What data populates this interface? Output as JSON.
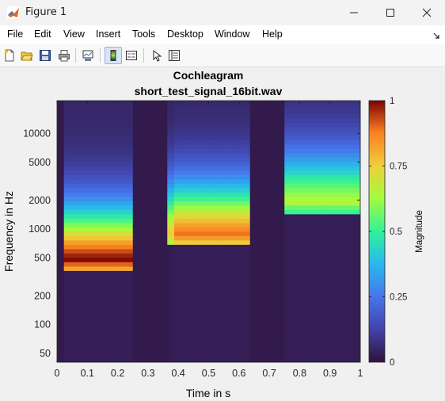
{
  "window": {
    "title": "Figure 1",
    "icon": "matlab-icon"
  },
  "menu": [
    "File",
    "Edit",
    "View",
    "Insert",
    "Tools",
    "Desktop",
    "Window",
    "Help"
  ],
  "toolbar": {
    "icons": [
      "new-figure-icon",
      "open-file-icon",
      "save-icon",
      "print-icon",
      "link-plot-icon",
      "insert-colorbar-icon",
      "insert-legend-icon",
      "edit-plot-icon",
      "property-inspector-icon"
    ]
  },
  "colors": {
    "background_cell": "#2d1a4f",
    "figure_bg": "#f0f0f0"
  },
  "chart_data": {
    "type": "heatmap",
    "title": "Cochleagram",
    "subtitle": "short_test_signal_16bit.wav",
    "xlabel": "Time in s",
    "ylabel": "Frequency in Hz",
    "x_ticks": [
      "0",
      "0.1",
      "0.2",
      "0.3",
      "0.4",
      "0.5",
      "0.6",
      "0.7",
      "0.8",
      "0.9",
      "1"
    ],
    "y_ticks": [
      "10000",
      "5000",
      "2000",
      "1000",
      "500",
      "200",
      "100",
      "50"
    ],
    "x_range": [
      0,
      1
    ],
    "y_scale": "log",
    "y_range": [
      40,
      22000
    ],
    "colorbar": {
      "label": "Magnitude",
      "ticks": [
        "1",
        "0.75",
        "0.5",
        "0.25",
        "0"
      ],
      "range": [
        0,
        1
      ],
      "colormap": "turbo"
    },
    "segments": [
      {
        "t_start": 0.02,
        "t_end": 0.25,
        "peak_freq_hz": 450,
        "peak_magnitude": 0.95
      },
      {
        "t_start": 0.37,
        "t_end": 0.63,
        "peak_freq_hz": 820,
        "peak_magnitude": 0.85
      },
      {
        "t_start": 0.75,
        "t_end": 1.0,
        "peak_freq_hz": 1800,
        "peak_magnitude": 0.6
      }
    ]
  }
}
